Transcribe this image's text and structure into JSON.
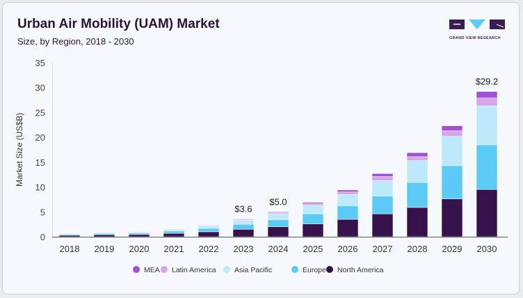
{
  "header": {
    "title": "Urban Air Mobility (UAM) Market",
    "subtitle": "Size, by Region, 2018 - 2030",
    "logo_text": "GRAND VIEW RESEARCH"
  },
  "chart_data": {
    "type": "bar",
    "stacked": true,
    "title": "Urban Air Mobility (UAM) Market",
    "subtitle": "Size, by Region, 2018 - 2030",
    "xlabel": "",
    "ylabel": "Market Size (US$B)",
    "ylim": [
      0,
      35
    ],
    "yticks": [
      0,
      5,
      10,
      15,
      20,
      25,
      30,
      35
    ],
    "grid": false,
    "legend": "bottom",
    "categories": [
      "2018",
      "2019",
      "2020",
      "2021",
      "2022",
      "2023",
      "2024",
      "2025",
      "2026",
      "2027",
      "2028",
      "2029",
      "2030"
    ],
    "series": [
      {
        "name": "North America",
        "color": "#35124a",
        "values": [
          0.3,
          0.4,
          0.45,
          0.7,
          1.0,
          1.5,
          2.0,
          2.6,
          3.5,
          4.6,
          5.9,
          7.6,
          9.5
        ]
      },
      {
        "name": "Europe",
        "color": "#5bcbf5",
        "values": [
          0.2,
          0.25,
          0.3,
          0.45,
          0.7,
          1.0,
          1.4,
          2.0,
          2.7,
          3.6,
          5.0,
          6.7,
          9.0
        ]
      },
      {
        "name": "Asia Pacific",
        "color": "#bde9fa",
        "values": [
          0.15,
          0.2,
          0.2,
          0.35,
          0.55,
          0.8,
          1.2,
          1.7,
          2.3,
          3.1,
          4.4,
          5.9,
          7.8
        ]
      },
      {
        "name": "Latin America",
        "color": "#d5a6ea",
        "values": [
          0.03,
          0.03,
          0.03,
          0.07,
          0.1,
          0.2,
          0.25,
          0.35,
          0.5,
          0.8,
          0.8,
          1.1,
          1.6
        ]
      },
      {
        "name": "MEA",
        "color": "#a24fd6",
        "values": [
          0.02,
          0.02,
          0.02,
          0.03,
          0.05,
          0.1,
          0.15,
          0.25,
          0.4,
          0.6,
          0.8,
          1.0,
          1.3
        ]
      }
    ],
    "annotations": [
      {
        "category": "2023",
        "label": "$3.6"
      },
      {
        "category": "2024",
        "label": "$5.0"
      },
      {
        "category": "2030",
        "label": "$29.2"
      }
    ],
    "legend_order": [
      "MEA",
      "Latin America",
      "Asia Pacific",
      "Europe",
      "North America"
    ]
  }
}
